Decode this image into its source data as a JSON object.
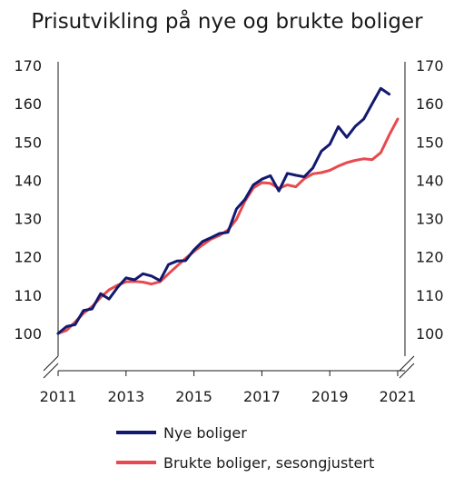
{
  "chart_data": {
    "type": "line",
    "title": "Prisutvikling på nye og brukte boliger",
    "xlabel": "",
    "ylabel": "",
    "xlim": [
      2011,
      2021
    ],
    "ylim": [
      100,
      170
    ],
    "y_axis_break": true,
    "grid": false,
    "legend_position": "bottom",
    "x_ticks": [
      "2011",
      "2013",
      "2015",
      "2017",
      "2019",
      "2021"
    ],
    "y_ticks": [
      "100",
      "110",
      "120",
      "130",
      "140",
      "150",
      "160",
      "170"
    ],
    "series": [
      {
        "name": "Nye boliger",
        "color": "#12196e",
        "x": [
          2011.0,
          2011.25,
          2011.5,
          2011.75,
          2012.0,
          2012.25,
          2012.5,
          2012.75,
          2013.0,
          2013.25,
          2013.5,
          2013.75,
          2014.0,
          2014.25,
          2014.5,
          2014.75,
          2015.0,
          2015.25,
          2015.5,
          2015.75,
          2016.0,
          2016.25,
          2016.5,
          2016.75,
          2017.0,
          2017.25,
          2017.5,
          2017.75,
          2018.0,
          2018.25,
          2018.5,
          2018.75,
          2019.0,
          2019.25,
          2019.5,
          2019.75,
          2020.0,
          2020.25,
          2020.5,
          2020.75
        ],
        "values": [
          100.0,
          101.8,
          102.3,
          106.0,
          106.4,
          110.4,
          109.0,
          112.0,
          114.5,
          114.0,
          115.6,
          115.0,
          113.8,
          118.0,
          118.9,
          119.0,
          121.8,
          124.0,
          125.0,
          126.1,
          126.4,
          132.5,
          135.0,
          138.8,
          140.3,
          141.2,
          137.2,
          141.8,
          141.3,
          140.9,
          143.2,
          147.6,
          149.4,
          154.0,
          151.2,
          154.1,
          156.0,
          160.0,
          164.0,
          162.5
        ]
      },
      {
        "name": "Brukte boliger, sesongjustert",
        "color": "#e8494f",
        "x": [
          2011.0,
          2011.25,
          2011.5,
          2011.75,
          2012.0,
          2012.25,
          2012.5,
          2012.75,
          2013.0,
          2013.25,
          2013.5,
          2013.75,
          2014.0,
          2014.25,
          2014.5,
          2014.75,
          2015.0,
          2015.25,
          2015.5,
          2015.75,
          2016.0,
          2016.25,
          2016.5,
          2016.75,
          2017.0,
          2017.25,
          2017.5,
          2017.75,
          2018.0,
          2018.25,
          2018.5,
          2018.75,
          2019.0,
          2019.25,
          2019.5,
          2019.75,
          2020.0,
          2020.25,
          2020.5,
          2020.75,
          2021.0
        ],
        "values": [
          100.0,
          100.8,
          103.0,
          105.3,
          107.0,
          109.4,
          111.4,
          112.6,
          113.5,
          113.6,
          113.4,
          112.9,
          113.5,
          115.6,
          117.6,
          119.6,
          121.4,
          123.1,
          124.6,
          125.6,
          127.0,
          129.8,
          134.5,
          138.0,
          139.4,
          139.2,
          137.9,
          138.8,
          138.3,
          140.4,
          141.7,
          142.0,
          142.6,
          143.7,
          144.6,
          145.2,
          145.6,
          145.4,
          147.2,
          151.8,
          156.0
        ]
      }
    ]
  }
}
